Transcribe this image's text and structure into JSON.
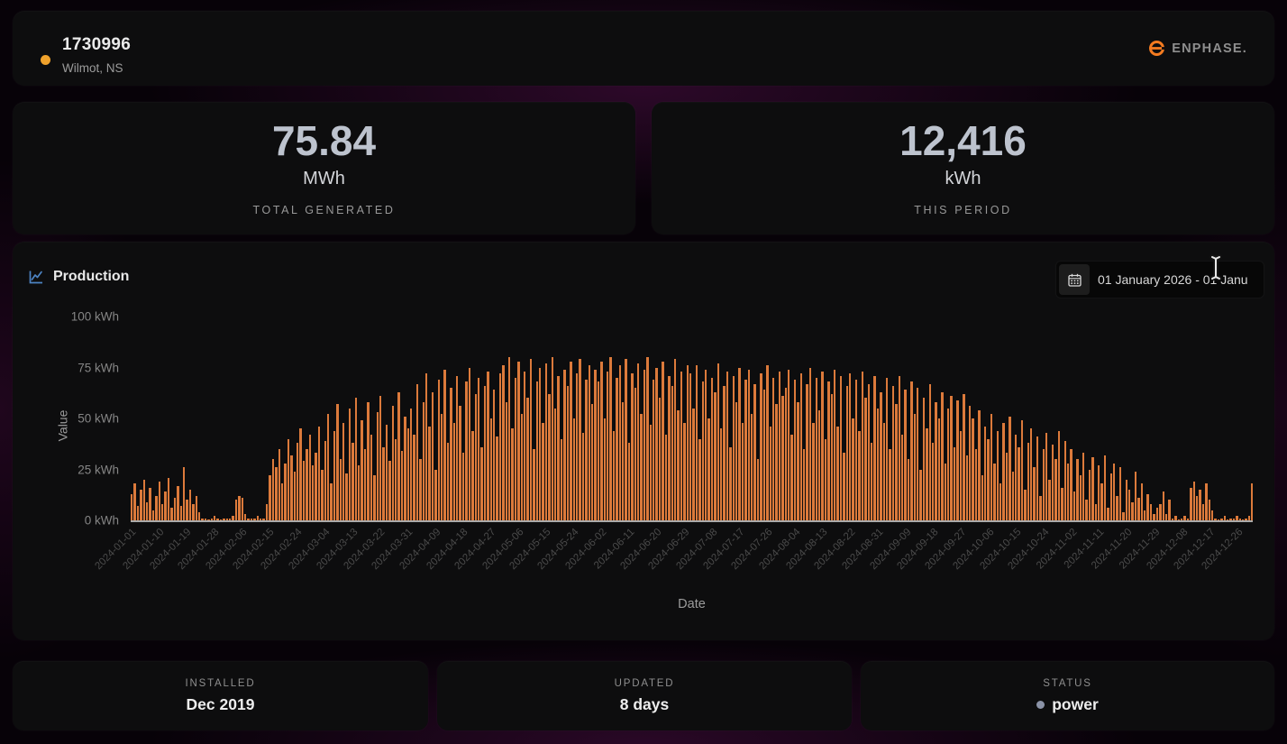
{
  "header": {
    "site_id": "1730996",
    "location": "Wilmot, NS",
    "status_dot_color": "#f0a22c",
    "brand": "ENPHASE.",
    "brand_color": "#f47b20"
  },
  "stats": [
    {
      "value": "75.84",
      "unit": "MWh",
      "label": "TOTAL GENERATED"
    },
    {
      "value": "12,416",
      "unit": "kWh",
      "label": "THIS PERIOD"
    }
  ],
  "production": {
    "title": "Production",
    "date_range": "01 January 2026 - 01 Janu"
  },
  "chart_data": {
    "type": "bar",
    "title": "Production",
    "xlabel": "Date",
    "ylabel": "Value",
    "ylim": [
      0,
      100
    ],
    "grid": false,
    "legend": false,
    "yticks": [
      "0 kWh",
      "25 kWh",
      "50 kWh",
      "75 kWh",
      "100 kWh"
    ],
    "x_start_date": "2024-01-01",
    "x_tick_interval_days": 9,
    "x_tick_labels": [
      "2024-01-01",
      "2024-01-10",
      "2024-01-19",
      "2024-01-28",
      "2024-02-06",
      "2024-02-15",
      "2024-02-24",
      "2024-03-04",
      "2024-03-13",
      "2024-03-22",
      "2024-03-31",
      "2024-04-09",
      "2024-04-18",
      "2024-04-27",
      "2024-05-06",
      "2024-05-15",
      "2024-05-24",
      "2024-06-02",
      "2024-06-11",
      "2024-06-20",
      "2024-06-29",
      "2024-07-08",
      "2024-07-17",
      "2024-07-26",
      "2024-08-04",
      "2024-08-13",
      "2024-08-22",
      "2024-08-31",
      "2024-09-09",
      "2024-09-18",
      "2024-09-27",
      "2024-10-06",
      "2024-10-15",
      "2024-10-24",
      "2024-11-02",
      "2024-11-11",
      "2024-11-20",
      "2024-11-29",
      "2024-12-08",
      "2024-12-17",
      "2024-12-26"
    ],
    "bar_color": "#dc7a3b",
    "values": [
      13,
      18,
      7,
      15,
      20,
      9,
      16,
      5,
      12,
      19,
      8,
      14,
      21,
      6,
      11,
      17,
      7,
      26,
      10,
      15,
      8,
      12,
      4,
      1,
      1,
      0.5,
      1,
      2,
      1,
      0.5,
      1,
      1,
      1,
      2,
      10,
      12,
      11,
      3,
      1,
      1,
      1,
      2,
      1,
      1,
      8,
      22,
      30,
      26,
      35,
      18,
      28,
      40,
      32,
      24,
      38,
      45,
      29,
      35,
      42,
      27,
      33,
      46,
      25,
      39,
      52,
      18,
      44,
      57,
      30,
      48,
      23,
      55,
      38,
      60,
      27,
      49,
      35,
      58,
      42,
      22,
      53,
      61,
      36,
      47,
      29,
      56,
      40,
      63,
      34,
      51,
      45,
      55,
      42,
      67,
      30,
      58,
      72,
      46,
      63,
      25,
      69,
      52,
      74,
      38,
      65,
      48,
      71,
      56,
      33,
      68,
      75,
      44,
      62,
      70,
      36,
      66,
      73,
      50,
      64,
      41,
      72,
      76,
      58,
      80,
      45,
      70,
      78,
      52,
      73,
      60,
      79,
      35,
      68,
      75,
      48,
      77,
      62,
      80,
      55,
      71,
      40,
      74,
      66,
      78,
      50,
      72,
      79,
      43,
      69,
      76,
      57,
      74,
      68,
      78,
      50,
      73,
      80,
      44,
      70,
      76,
      58,
      79,
      38,
      72,
      65,
      77,
      52,
      74,
      80,
      47,
      69,
      75,
      60,
      78,
      42,
      71,
      66,
      79,
      54,
      73,
      48,
      76,
      72,
      55,
      76,
      40,
      68,
      74,
      50,
      70,
      63,
      77,
      45,
      66,
      73,
      36,
      71,
      58,
      75,
      48,
      69,
      74,
      52,
      67,
      30,
      72,
      64,
      76,
      46,
      70,
      57,
      73,
      61,
      65,
      74,
      42,
      69,
      58,
      72,
      35,
      67,
      75,
      48,
      70,
      54,
      73,
      40,
      68,
      62,
      74,
      46,
      71,
      33,
      66,
      72,
      50,
      69,
      44,
      73,
      60,
      67,
      38,
      71,
      55,
      63,
      48,
      70,
      35,
      66,
      57,
      71,
      42,
      64,
      30,
      68,
      52,
      65,
      25,
      60,
      45,
      67,
      38,
      58,
      50,
      63,
      28,
      55,
      61,
      36,
      59,
      44,
      62,
      32,
      56,
      50,
      35,
      54,
      22,
      46,
      40,
      52,
      28,
      44,
      18,
      48,
      33,
      51,
      24,
      42,
      36,
      49,
      15,
      38,
      45,
      26,
      41,
      12,
      35,
      43,
      20,
      37,
      30,
      44,
      16,
      39,
      28,
      35,
      14,
      30,
      22,
      33,
      10,
      25,
      31,
      8,
      27,
      18,
      32,
      6,
      23,
      28,
      12,
      26,
      4,
      20,
      15,
      9,
      24,
      11,
      18,
      5,
      13,
      8,
      3,
      6,
      8,
      14,
      3,
      10,
      1,
      2,
      0.5,
      1,
      2,
      1,
      16,
      19,
      12,
      15,
      8,
      18,
      10,
      5,
      1,
      0.5,
      1,
      2,
      0.5,
      1,
      1,
      2,
      1,
      0.5,
      1,
      2,
      18
    ]
  },
  "footer": [
    {
      "label": "INSTALLED",
      "value": "Dec 2019"
    },
    {
      "label": "UPDATED",
      "value": "8 days"
    },
    {
      "label": "STATUS",
      "value": "power",
      "dot_color": "#8b93a7"
    }
  ]
}
